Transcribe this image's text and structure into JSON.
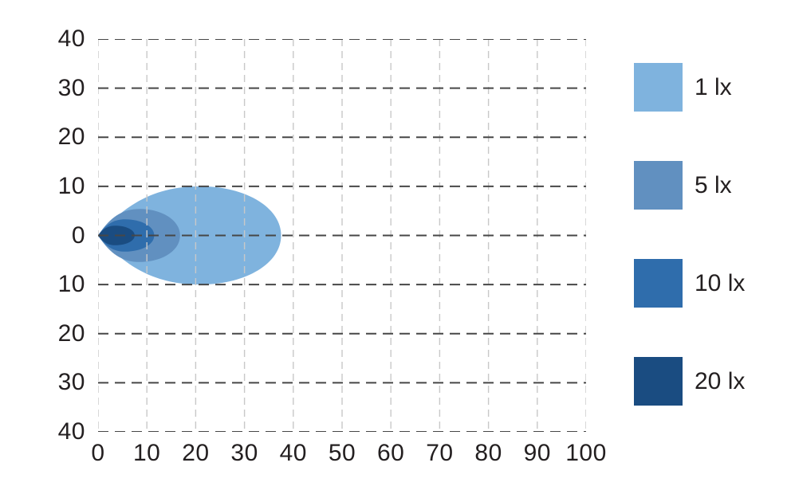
{
  "colors": {
    "background": "#ffffff",
    "text": "#231f20",
    "grid_horizontal": "#474747",
    "grid_vertical": "#c8c8c8"
  },
  "chart_data": {
    "type": "area",
    "title": "",
    "xlabel": "",
    "ylabel": "",
    "x_range": [
      0,
      100
    ],
    "y_range": [
      -40,
      40
    ],
    "x_ticks": [
      0,
      10,
      20,
      30,
      40,
      50,
      60,
      70,
      80,
      90,
      100
    ],
    "y_ticks": [
      40,
      30,
      20,
      10,
      0,
      -10,
      -20,
      -30,
      -40
    ],
    "y_tick_labels": [
      "40",
      "30",
      "20",
      "10",
      "0",
      "10",
      "20",
      "30",
      "40"
    ],
    "grid": true,
    "series": [
      {
        "name": "1 lx",
        "color": "#7fb3de",
        "origin_x": 0,
        "origin_y": 0,
        "reach": 37.5,
        "half_width": 10.0,
        "apex": 21.0
      },
      {
        "name": "5 lx",
        "color": "#6190c0",
        "origin_x": 0,
        "origin_y": 0,
        "reach": 16.8,
        "half_width": 5.4,
        "apex": 8.5
      },
      {
        "name": "10 lx",
        "color": "#2f6dac",
        "origin_x": 0,
        "origin_y": 0,
        "reach": 11.5,
        "half_width": 3.3,
        "apex": 5.5
      },
      {
        "name": "20 lx",
        "color": "#1a4c81",
        "origin_x": 0,
        "origin_y": 0,
        "reach": 7.5,
        "half_width": 2.0,
        "apex": 3.5
      }
    ],
    "legend": {
      "position": "right",
      "items": [
        {
          "label": "1 lx",
          "color": "#7fb3de"
        },
        {
          "label": "5 lx",
          "color": "#6190c0"
        },
        {
          "label": "10 lx",
          "color": "#2f6dac"
        },
        {
          "label": "20 lx",
          "color": "#1a4c81"
        }
      ]
    }
  }
}
